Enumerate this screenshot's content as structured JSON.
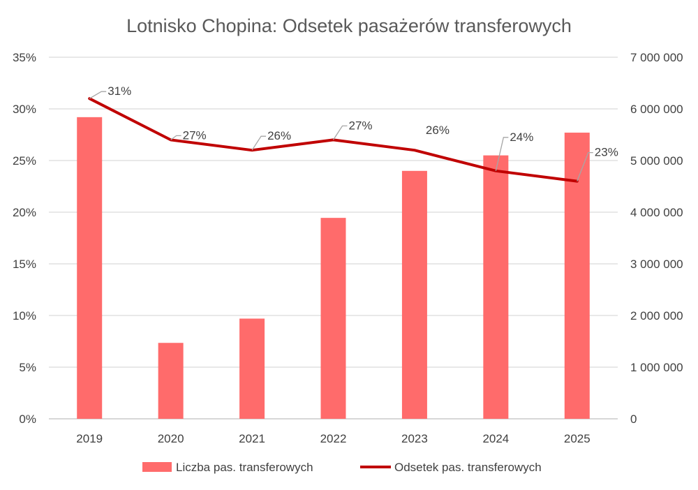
{
  "chart_data": {
    "type": "bar",
    "title": "Lotnisko Chopina: Odsetek pasażerów transferowych",
    "categories": [
      "2019",
      "2020",
      "2021",
      "2022",
      "2023",
      "2024",
      "2025"
    ],
    "series": [
      {
        "name": "Liczba pas. transferowych",
        "type": "bar",
        "axis": "right",
        "values": [
          5840000,
          1470000,
          1940000,
          3890000,
          4800000,
          5100000,
          5540000
        ],
        "color": "#FF6B6B"
      },
      {
        "name": "Odsetek pas. transferowych",
        "type": "line",
        "axis": "left",
        "values": [
          31,
          27,
          26,
          27,
          26,
          24,
          23
        ],
        "labels": [
          "31%",
          "27%",
          "26%",
          "27%",
          "26%",
          "24%",
          "23%"
        ],
        "color": "#C00000"
      }
    ],
    "y_left": {
      "ylim": [
        0,
        35
      ],
      "ticks": [
        0,
        5,
        10,
        15,
        20,
        25,
        30,
        35
      ],
      "tick_labels": [
        "0%",
        "5%",
        "10%",
        "15%",
        "20%",
        "25%",
        "30%",
        "35%"
      ]
    },
    "y_right": {
      "ylim": [
        0,
        7000000
      ],
      "ticks": [
        0,
        1000000,
        2000000,
        3000000,
        4000000,
        5000000,
        6000000,
        7000000
      ],
      "tick_labels": [
        "0",
        "1 000 000",
        "2 000 000",
        "3 000 000",
        "4 000 000",
        "5 000 000",
        "6 000 000",
        "7 000 000"
      ]
    },
    "grid": true,
    "legend": "bottom"
  }
}
